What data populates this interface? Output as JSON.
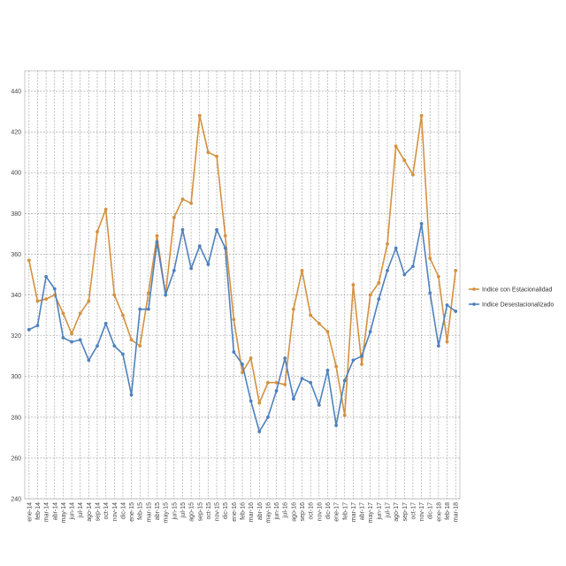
{
  "chart_data": {
    "type": "line",
    "ylim": [
      240,
      450
    ],
    "yticks": [
      240,
      260,
      280,
      300,
      320,
      340,
      360,
      380,
      400,
      420,
      440
    ],
    "grid": true,
    "legend_position": "right",
    "categories": [
      "ene-14",
      "feb-14",
      "mar-14",
      "abr-14",
      "may-14",
      "jun-14",
      "jul-14",
      "ago-14",
      "sep-14",
      "oct-14",
      "nov-14",
      "dic-14",
      "ene-15",
      "feb-15",
      "mar-15",
      "abr-15",
      "may-15",
      "jun-15",
      "jul-15",
      "ago-15",
      "sep-15",
      "oct-15",
      "nov-15",
      "dic-15",
      "ene-16",
      "feb-16",
      "mar-16",
      "abr-16",
      "may-16",
      "jun-16",
      "jul-16",
      "ago-16",
      "sep-16",
      "oct-16",
      "nov-16",
      "dic-16",
      "ene-17",
      "feb-17",
      "mar-17",
      "abr-17",
      "may-17",
      "jun-17",
      "jul-17",
      "ago-17",
      "sep-17",
      "oct-17",
      "nov-17",
      "dic-17",
      "ene-18",
      "feb-18",
      "mar-18"
    ],
    "series": [
      {
        "name": "Indice con Estacionalidad",
        "color": "#d4913f",
        "values": [
          357,
          337,
          338,
          340,
          331,
          321,
          331,
          337,
          371,
          382,
          340,
          330,
          318,
          315,
          341,
          369,
          340,
          378,
          387,
          385,
          428,
          410,
          408,
          369,
          328,
          302,
          309,
          287,
          297,
          297,
          296,
          333,
          352,
          330,
          326,
          322,
          305,
          281,
          345,
          306,
          340,
          346,
          365,
          413,
          406,
          399,
          428,
          358,
          349,
          317,
          352
        ]
      },
      {
        "name": "Indice Desestacionalizado",
        "color": "#4f81bd",
        "values": [
          323,
          325,
          349,
          343,
          319,
          317,
          318,
          308,
          315,
          326,
          315,
          311,
          291,
          333,
          333,
          366,
          340,
          352,
          372,
          353,
          364,
          355,
          372,
          363,
          312,
          306,
          288,
          273,
          280,
          293,
          309,
          289,
          299,
          297,
          286,
          303,
          276,
          298,
          308,
          310,
          322,
          338,
          352,
          363,
          350,
          354,
          375,
          341,
          315,
          335,
          332
        ]
      }
    ]
  }
}
